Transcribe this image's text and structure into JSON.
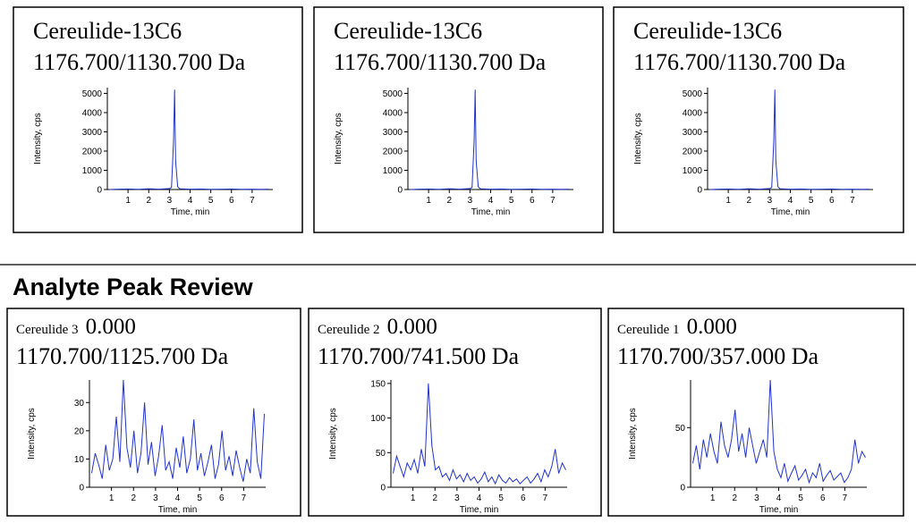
{
  "section_heading": "Analyte Peak Review",
  "chart_data": [
    {
      "type": "line",
      "title": "Cereulide-13C6",
      "subtitle": "1176.700/1130.700 Da",
      "x_label": "Time, min",
      "y_label": "Intensity, cps",
      "color": "#2233cc",
      "x": [
        0.1,
        0.5,
        1,
        1.5,
        2,
        2.5,
        3,
        3.1,
        3.2,
        3.25,
        3.3,
        3.4,
        3.5,
        4,
        4.5,
        5,
        5.5,
        6,
        6.5,
        7,
        7.5,
        7.8
      ],
      "values": [
        0,
        20,
        30,
        10,
        40,
        20,
        50,
        100,
        2500,
        5200,
        1500,
        150,
        40,
        20,
        30,
        10,
        20,
        30,
        10,
        20,
        10,
        20
      ],
      "xlim": [
        0,
        8
      ],
      "xticks": [
        1,
        2,
        3,
        4,
        5,
        6,
        7
      ],
      "ylim": [
        0,
        5300
      ],
      "yticks": [
        0,
        1000,
        2000,
        3000,
        4000,
        5000
      ]
    },
    {
      "type": "line",
      "title": "Cereulide-13C6",
      "subtitle": "1176.700/1130.700 Da",
      "x_label": "Time, min",
      "y_label": "Intensity, cps",
      "color": "#2233cc",
      "x": [
        0.1,
        0.5,
        1,
        1.5,
        2,
        2.5,
        3,
        3.1,
        3.2,
        3.25,
        3.3,
        3.4,
        3.5,
        4,
        4.5,
        5,
        5.5,
        6,
        6.5,
        7,
        7.5,
        7.8
      ],
      "values": [
        0,
        20,
        30,
        10,
        40,
        20,
        50,
        100,
        2500,
        5200,
        1500,
        150,
        40,
        20,
        30,
        10,
        20,
        30,
        10,
        20,
        10,
        20
      ],
      "xlim": [
        0,
        8
      ],
      "xticks": [
        1,
        2,
        3,
        4,
        5,
        6,
        7
      ],
      "ylim": [
        0,
        5300
      ],
      "yticks": [
        0,
        1000,
        2000,
        3000,
        4000,
        5000
      ]
    },
    {
      "type": "line",
      "title": "Cereulide-13C6",
      "subtitle": "1176.700/1130.700 Da",
      "x_label": "Time, min",
      "y_label": "Intensity, cps",
      "color": "#2233cc",
      "x": [
        0.1,
        0.5,
        1,
        1.5,
        2,
        2.5,
        3,
        3.1,
        3.2,
        3.25,
        3.3,
        3.4,
        3.5,
        4,
        4.5,
        5,
        5.5,
        6,
        6.5,
        7,
        7.5,
        7.8
      ],
      "values": [
        0,
        20,
        30,
        10,
        40,
        20,
        50,
        100,
        2500,
        5200,
        1500,
        150,
        40,
        20,
        30,
        10,
        20,
        30,
        10,
        20,
        10,
        20
      ],
      "xlim": [
        0,
        8
      ],
      "xticks": [
        1,
        2,
        3,
        4,
        5,
        6,
        7
      ],
      "ylim": [
        0,
        5300
      ],
      "yticks": [
        0,
        1000,
        2000,
        3000,
        4000,
        5000
      ]
    },
    {
      "type": "line",
      "title": "Cereulide 3",
      "title_value": "0.000",
      "subtitle": "1170.700/1125.700 Da",
      "x_label": "Time, min",
      "y_label": "Intensity, cps",
      "color": "#2233cc",
      "x": [
        0.1,
        0.26,
        0.42,
        0.58,
        0.74,
        0.9,
        1.06,
        1.22,
        1.38,
        1.54,
        1.7,
        1.86,
        2.02,
        2.18,
        2.34,
        2.5,
        2.66,
        2.82,
        2.98,
        3.14,
        3.3,
        3.46,
        3.62,
        3.78,
        3.94,
        4.1,
        4.26,
        4.42,
        4.58,
        4.74,
        4.9,
        5.06,
        5.22,
        5.38,
        5.54,
        5.7,
        5.86,
        6.02,
        6.18,
        6.34,
        6.5,
        6.66,
        6.82,
        6.98,
        7.14,
        7.3,
        7.46,
        7.62,
        7.78,
        7.94
      ],
      "values": [
        5,
        12,
        8,
        3,
        15,
        6,
        10,
        25,
        9,
        38,
        14,
        7,
        20,
        5,
        12,
        30,
        8,
        16,
        4,
        11,
        22,
        6,
        9,
        3,
        14,
        7,
        18,
        5,
        10,
        24,
        6,
        12,
        4,
        9,
        15,
        3,
        8,
        20,
        6,
        11,
        4,
        13,
        7,
        2,
        10,
        5,
        28,
        9,
        3,
        26
      ],
      "xlim": [
        0,
        8
      ],
      "xticks": [
        1,
        2,
        3,
        4,
        5,
        6,
        7
      ],
      "ylim": [
        0,
        38
      ],
      "yticks": [
        0,
        10,
        20,
        30
      ]
    },
    {
      "type": "line",
      "title": "Cereulide 2",
      "title_value": "0.000",
      "subtitle": "1170.700/741.500 Da",
      "x_label": "Time, min",
      "y_label": "Intensity, cps",
      "color": "#2233cc",
      "x": [
        0.1,
        0.26,
        0.42,
        0.58,
        0.74,
        0.9,
        1.06,
        1.22,
        1.38,
        1.54,
        1.7,
        1.86,
        2.02,
        2.18,
        2.34,
        2.5,
        2.66,
        2.82,
        2.98,
        3.14,
        3.3,
        3.46,
        3.62,
        3.78,
        3.94,
        4.1,
        4.26,
        4.42,
        4.58,
        4.74,
        4.9,
        5.06,
        5.22,
        5.38,
        5.54,
        5.7,
        5.86,
        6.02,
        6.18,
        6.34,
        6.5,
        6.66,
        6.82,
        6.98,
        7.14,
        7.3,
        7.46,
        7.62,
        7.78,
        7.94
      ],
      "values": [
        20,
        45,
        30,
        15,
        35,
        25,
        40,
        20,
        55,
        30,
        150,
        60,
        25,
        30,
        15,
        20,
        10,
        25,
        12,
        18,
        8,
        20,
        10,
        15,
        6,
        12,
        22,
        8,
        15,
        5,
        18,
        10,
        6,
        14,
        8,
        12,
        5,
        10,
        15,
        6,
        12,
        20,
        8,
        25,
        15,
        30,
        55,
        20,
        35,
        25
      ],
      "xlim": [
        0,
        8
      ],
      "xticks": [
        1,
        2,
        3,
        4,
        5,
        6,
        7
      ],
      "ylim": [
        0,
        155
      ],
      "yticks": [
        0,
        50,
        100,
        150
      ]
    },
    {
      "type": "line",
      "title": "Cereulide 1",
      "title_value": "0.000",
      "subtitle": "1170.700/357.000 Da",
      "x_label": "Time, min",
      "y_label": "Intensity, cps",
      "color": "#2233cc",
      "x": [
        0.1,
        0.26,
        0.42,
        0.58,
        0.74,
        0.9,
        1.06,
        1.22,
        1.38,
        1.54,
        1.7,
        1.86,
        2.02,
        2.18,
        2.34,
        2.5,
        2.66,
        2.82,
        2.98,
        3.14,
        3.3,
        3.46,
        3.62,
        3.78,
        3.94,
        4.1,
        4.26,
        4.42,
        4.58,
        4.74,
        4.9,
        5.06,
        5.22,
        5.38,
        5.54,
        5.7,
        5.86,
        6.02,
        6.18,
        6.34,
        6.5,
        6.66,
        6.82,
        6.98,
        7.14,
        7.3,
        7.46,
        7.62,
        7.78,
        7.94
      ],
      "values": [
        20,
        35,
        15,
        40,
        25,
        45,
        30,
        20,
        55,
        35,
        25,
        40,
        65,
        30,
        45,
        25,
        50,
        35,
        20,
        30,
        40,
        25,
        90,
        30,
        15,
        8,
        20,
        5,
        12,
        18,
        6,
        10,
        15,
        4,
        12,
        8,
        20,
        5,
        10,
        14,
        6,
        9,
        12,
        4,
        8,
        15,
        40,
        20,
        30,
        25
      ],
      "xlim": [
        0,
        8
      ],
      "xticks": [
        1,
        2,
        3,
        4,
        5,
        6,
        7
      ],
      "ylim": [
        0,
        90
      ],
      "yticks": [
        0,
        50
      ]
    }
  ]
}
